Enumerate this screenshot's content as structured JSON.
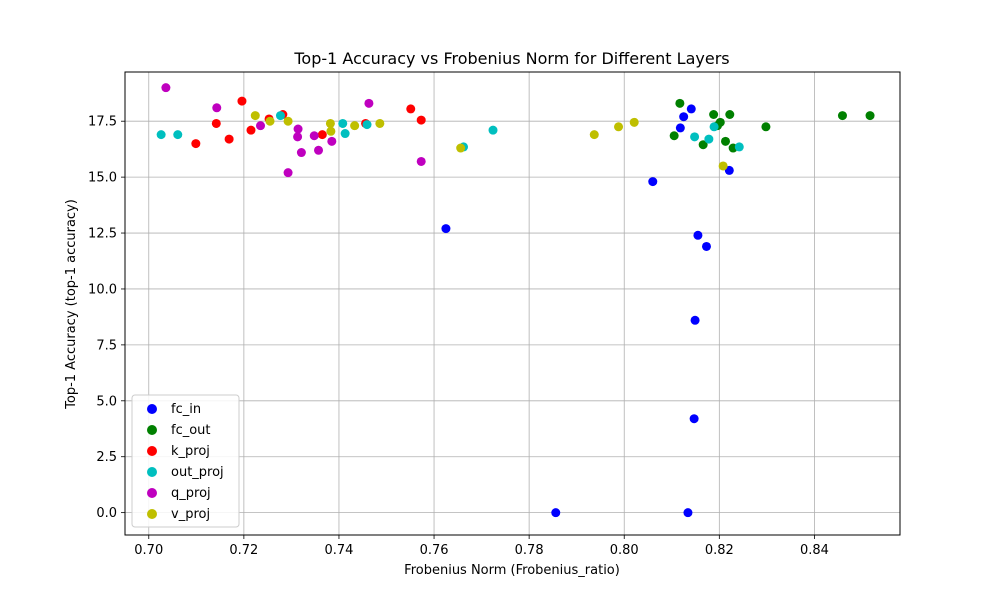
{
  "chart_data": {
    "type": "scatter",
    "title": "Top-1 Accuracy vs Frobenius Norm for Different Layers",
    "xlabel": "Frobenius Norm (Frobenius_ratio)",
    "ylabel": "Top-1 Accuracy (top-1 accuracy)",
    "xlim": [
      0.695,
      0.858
    ],
    "ylim": [
      -1.0,
      19.7
    ],
    "xticks": [
      "0.70",
      "0.72",
      "0.74",
      "0.76",
      "0.78",
      "0.80",
      "0.82",
      "0.84"
    ],
    "xtick_values": [
      0.7,
      0.72,
      0.74,
      0.76,
      0.78,
      0.8,
      0.82,
      0.84
    ],
    "yticks": [
      "0.0",
      "2.5",
      "5.0",
      "7.5",
      "10.0",
      "12.5",
      "15.0",
      "17.5"
    ],
    "ytick_values": [
      0.0,
      2.5,
      5.0,
      7.5,
      10.0,
      12.5,
      15.0,
      17.5
    ],
    "grid": true,
    "legend_position": "lower-left",
    "series": [
      {
        "name": "fc_in",
        "color": "#0000ff",
        "points": [
          [
            0.8125,
            17.7
          ],
          [
            0.8141,
            18.05
          ],
          [
            0.8118,
            17.2
          ],
          [
            0.806,
            14.8
          ],
          [
            0.8221,
            15.3
          ],
          [
            0.8155,
            12.4
          ],
          [
            0.8173,
            11.9
          ],
          [
            0.7625,
            12.7
          ],
          [
            0.8149,
            8.6
          ],
          [
            0.8147,
            4.2
          ],
          [
            0.7856,
            0.0
          ],
          [
            0.8134,
            0.0
          ]
        ]
      },
      {
        "name": "fc_out",
        "color": "#008000",
        "points": [
          [
            0.8117,
            18.3
          ],
          [
            0.8188,
            17.8
          ],
          [
            0.8222,
            17.8
          ],
          [
            0.8459,
            17.75
          ],
          [
            0.8517,
            17.75
          ],
          [
            0.8202,
            17.45
          ],
          [
            0.8196,
            17.3
          ],
          [
            0.8298,
            17.25
          ],
          [
            0.8105,
            16.85
          ],
          [
            0.8213,
            16.6
          ],
          [
            0.8166,
            16.45
          ],
          [
            0.8229,
            16.3
          ]
        ]
      },
      {
        "name": "k_proj",
        "color": "#ff0000",
        "points": [
          [
            0.7196,
            18.4
          ],
          [
            0.7551,
            18.05
          ],
          [
            0.7282,
            17.8
          ],
          [
            0.7573,
            17.55
          ],
          [
            0.7253,
            17.6
          ],
          [
            0.7142,
            17.4
          ],
          [
            0.7456,
            17.4
          ],
          [
            0.7215,
            17.1
          ],
          [
            0.7365,
            16.9
          ],
          [
            0.7169,
            16.7
          ],
          [
            0.7099,
            16.5
          ]
        ]
      },
      {
        "name": "out_proj",
        "color": "#00bfbf",
        "points": [
          [
            0.7277,
            17.75
          ],
          [
            0.7408,
            17.4
          ],
          [
            0.7459,
            17.35
          ],
          [
            0.8189,
            17.25
          ],
          [
            0.7724,
            17.1
          ],
          [
            0.7026,
            16.9
          ],
          [
            0.7061,
            16.9
          ],
          [
            0.7413,
            16.95
          ],
          [
            0.8148,
            16.8
          ],
          [
            0.8178,
            16.7
          ],
          [
            0.8242,
            16.35
          ],
          [
            0.7662,
            16.35
          ]
        ]
      },
      {
        "name": "q_proj",
        "color": "#bf00bf",
        "points": [
          [
            0.7036,
            19.0
          ],
          [
            0.7463,
            18.3
          ],
          [
            0.7143,
            18.1
          ],
          [
            0.7235,
            17.3
          ],
          [
            0.7314,
            17.15
          ],
          [
            0.7313,
            16.8
          ],
          [
            0.7348,
            16.85
          ],
          [
            0.7385,
            16.6
          ],
          [
            0.7321,
            16.1
          ],
          [
            0.7357,
            16.2
          ],
          [
            0.7573,
            15.7
          ],
          [
            0.7293,
            15.2
          ]
        ]
      },
      {
        "name": "v_proj",
        "color": "#bfbf00",
        "points": [
          [
            0.7224,
            17.75
          ],
          [
            0.7255,
            17.5
          ],
          [
            0.7293,
            17.5
          ],
          [
            0.7382,
            17.4
          ],
          [
            0.7433,
            17.3
          ],
          [
            0.7486,
            17.4
          ],
          [
            0.7383,
            17.05
          ],
          [
            0.7988,
            17.25
          ],
          [
            0.8021,
            17.45
          ],
          [
            0.7937,
            16.9
          ],
          [
            0.7656,
            16.3
          ],
          [
            0.8208,
            15.5
          ]
        ]
      }
    ]
  }
}
